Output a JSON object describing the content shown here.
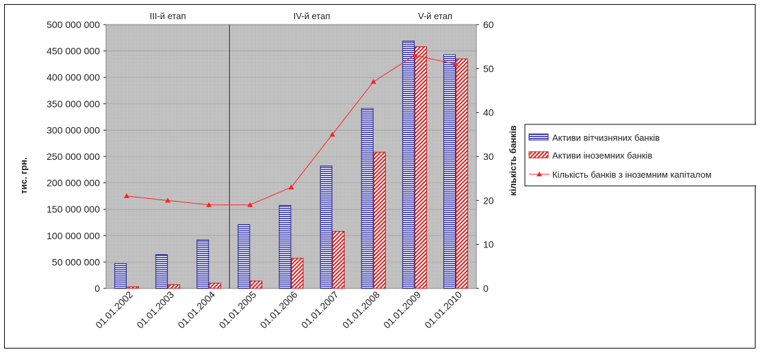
{
  "chart_data": {
    "type": "bar",
    "categories": [
      "01.01.2002",
      "01.01.2003",
      "01.01.2004",
      "01.01.2005",
      "01.01.2006",
      "01.01.2007",
      "01.01.2008",
      "01.01.2009",
      "01.01.2010"
    ],
    "series": [
      {
        "name": "Активи вітчизняних банків",
        "axis": "left",
        "color": "#2a2aa8",
        "values": [
          47000000,
          64000000,
          92000000,
          121000000,
          157000000,
          232000000,
          341000000,
          469000000,
          443000000
        ]
      },
      {
        "name": "Активи іноземних банків",
        "axis": "left",
        "color": "#e02020",
        "values": [
          3000000,
          7000000,
          10000000,
          14000000,
          57000000,
          108000000,
          258000000,
          458000000,
          435000000
        ]
      },
      {
        "name": "Кількість банків з іноземним капіталом",
        "axis": "right",
        "type": "line",
        "color": "#ff2020",
        "values": [
          21,
          20,
          19,
          19,
          23,
          35,
          47,
          53,
          51
        ]
      }
    ],
    "ylabel": "тис. грн.",
    "y2label": "кількість банків",
    "ylim": [
      0,
      500000000
    ],
    "y2lim": [
      0,
      60
    ],
    "yticks": [
      "0",
      "50 000 000",
      "100 000 000",
      "150 000 000",
      "200 000 000",
      "250 000 000",
      "300 000 000",
      "350 000 000",
      "400 000 000",
      "450 000 000",
      "500 000 000"
    ],
    "y2ticks": [
      "0",
      "10",
      "20",
      "30",
      "40",
      "50",
      "60"
    ],
    "stages": [
      {
        "label": "ІІІ-й етап",
        "from": 0,
        "to": 2
      },
      {
        "label": "ІV-й етап",
        "from": 3,
        "to": 6
      },
      {
        "label": "V-й етап",
        "from": 7,
        "to": 8
      }
    ],
    "stage_dividers_after": [
      2
    ],
    "grid": true,
    "legend_position": "right"
  }
}
